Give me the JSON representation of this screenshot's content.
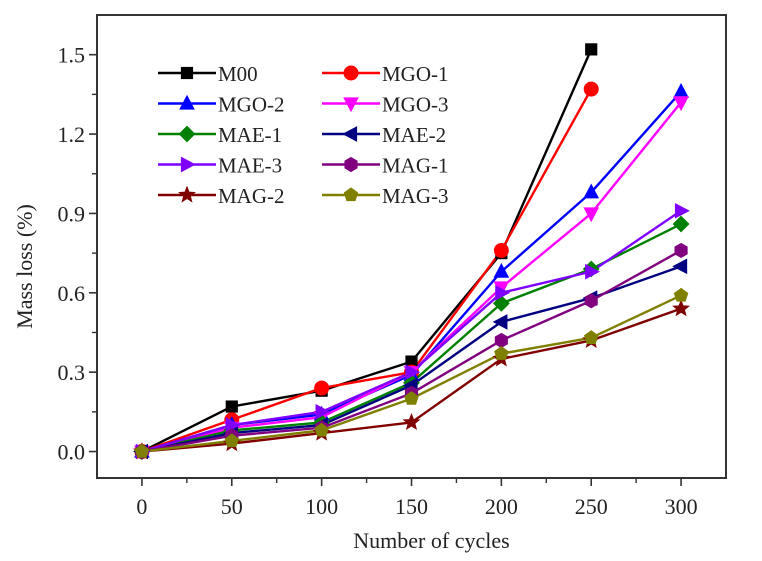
{
  "chart_data": {
    "type": "line",
    "title": "",
    "xlabel": "Number of cycles",
    "ylabel": "Mass loss (%)",
    "xlim": [
      -25,
      325
    ],
    "ylim": [
      -0.1,
      1.65
    ],
    "xticks": [
      0,
      50,
      100,
      150,
      200,
      250,
      300
    ],
    "xtick_labels": [
      "0",
      "50",
      "100",
      "150",
      "200",
      "250",
      "300"
    ],
    "yticks": [
      0.0,
      0.3,
      0.6,
      0.9,
      1.2,
      1.5
    ],
    "ytick_labels": [
      "0.0",
      "0.3",
      "0.6",
      "0.9",
      "1.2",
      "1.5"
    ],
    "grid": false,
    "legend_position": "top-left",
    "x": [
      0,
      50,
      100,
      150,
      200,
      250,
      300
    ],
    "series": [
      {
        "name": "M00",
        "color": "#000000",
        "marker": "square",
        "values": [
          0,
          0.17,
          0.23,
          0.34,
          0.75,
          1.52
        ]
      },
      {
        "name": "MGO-1",
        "color": "#ff0000",
        "marker": "circle",
        "values": [
          0,
          0.12,
          0.24,
          0.3,
          0.76,
          1.37
        ]
      },
      {
        "name": "MGO-2",
        "color": "#0000ff",
        "marker": "triangle-up",
        "values": [
          0,
          0.1,
          0.14,
          0.29,
          0.68,
          0.98,
          1.36
        ]
      },
      {
        "name": "MGO-3",
        "color": "#ff00ff",
        "marker": "triangle-down",
        "values": [
          0,
          0.09,
          0.13,
          0.3,
          0.62,
          0.9,
          1.32
        ]
      },
      {
        "name": "MAE-1",
        "color": "#008000",
        "marker": "diamond",
        "values": [
          0,
          0.08,
          0.11,
          0.26,
          0.56,
          0.69,
          0.86
        ]
      },
      {
        "name": "MAE-2",
        "color": "#000080",
        "marker": "triangle-left",
        "values": [
          0,
          0.07,
          0.1,
          0.25,
          0.49,
          0.58,
          0.7
        ]
      },
      {
        "name": "MAE-3",
        "color": "#8000ff",
        "marker": "triangle-right",
        "values": [
          0,
          0.1,
          0.15,
          0.3,
          0.6,
          0.68,
          0.91
        ]
      },
      {
        "name": "MAG-1",
        "color": "#800080",
        "marker": "hexagon",
        "values": [
          0,
          0.06,
          0.09,
          0.22,
          0.42,
          0.57,
          0.76
        ]
      },
      {
        "name": "MAG-2",
        "color": "#800000",
        "marker": "star",
        "values": [
          0,
          0.03,
          0.07,
          0.11,
          0.35,
          0.42,
          0.54
        ]
      },
      {
        "name": "MAG-3",
        "color": "#808000",
        "marker": "pentagon",
        "values": [
          0,
          0.04,
          0.08,
          0.2,
          0.37,
          0.43,
          0.59
        ]
      }
    ]
  }
}
